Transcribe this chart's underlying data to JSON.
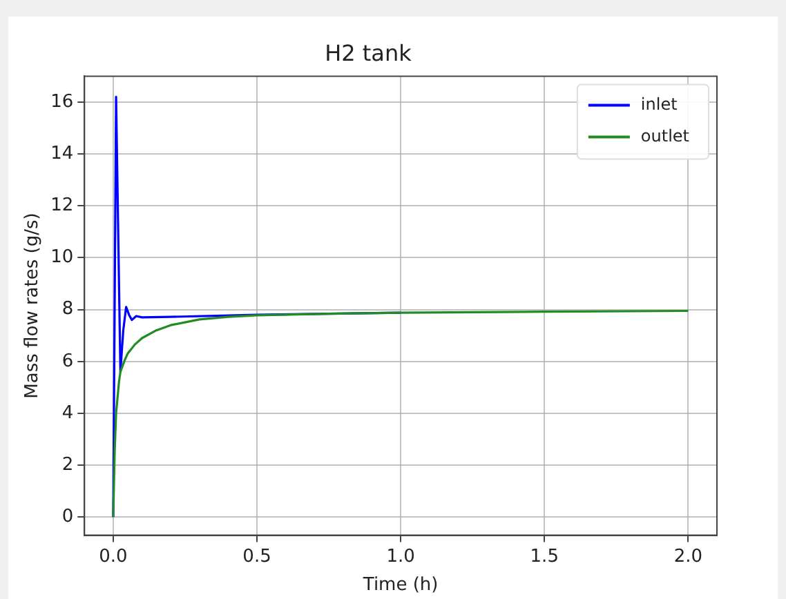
{
  "chart_data": {
    "type": "line",
    "title": "H2 tank",
    "xlabel": "Time (h)",
    "ylabel": "Mass flow rates (g/s)",
    "xlim": [
      -0.1,
      2.1
    ],
    "xticks": [
      {
        "value": 0,
        "label": "0.0"
      },
      0.5,
      {
        "value": 1,
        "label": "1.0"
      },
      1.5,
      {
        "value": 2,
        "label": "2.0"
      }
    ],
    "ylim": [
      -0.7,
      17
    ],
    "yticks": [
      0,
      2,
      4,
      6,
      8,
      10,
      12,
      14,
      16
    ],
    "grid": true,
    "legend": "top right",
    "marker": "none",
    "line_style": "solid",
    "series": [
      {
        "name": "inlet",
        "color": "#0000ff",
        "x": [
          0,
          0.01,
          0.025,
          0.035,
          0.045,
          0.055,
          0.065,
          0.08,
          0.1,
          0.2,
          0.5,
          1
        ],
        "values": [
          0,
          16.2,
          5.6,
          7.2,
          8.1,
          7.8,
          7.6,
          7.75,
          7.7,
          7.72,
          7.8,
          7.88
        ]
      },
      {
        "name": "outlet",
        "color": "#228b22",
        "x": [
          0,
          0.005,
          0.01,
          0.02,
          0.025,
          0.04,
          0.05,
          0.075,
          0.1,
          0.15,
          0.2,
          0.3,
          0.4,
          0.5,
          0.75,
          1,
          1.5,
          2
        ],
        "values": [
          0,
          2.5,
          4,
          5.2,
          5.6,
          6.05,
          6.3,
          6.65,
          6.9,
          7.2,
          7.4,
          7.62,
          7.72,
          7.78,
          7.84,
          7.88,
          7.92,
          7.95
        ]
      }
    ]
  }
}
